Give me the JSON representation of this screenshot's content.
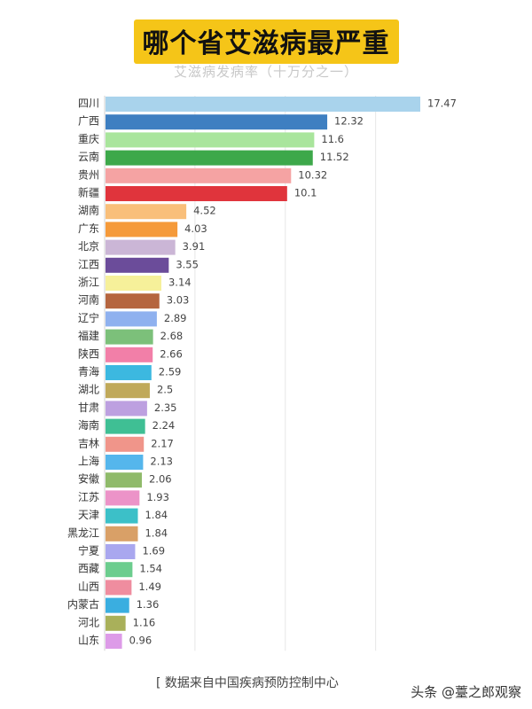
{
  "chart_data": {
    "type": "bar",
    "orientation": "horizontal",
    "title": "哪个省艾滋病最严重",
    "subtitle": "艾滋病发病率（十万分之一）",
    "xlabel": "",
    "ylabel": "",
    "xlim": [
      0,
      18
    ],
    "grid": true,
    "legend": "none",
    "categories": [
      "四川",
      "广西",
      "重庆",
      "云南",
      "贵州",
      "新疆",
      "湖南",
      "广东",
      "北京",
      "江西",
      "浙江",
      "河南",
      "辽宁",
      "福建",
      "陕西",
      "青海",
      "湖北",
      "甘肃",
      "海南",
      "吉林",
      "上海",
      "安徽",
      "江苏",
      "天津",
      "黑龙江",
      "宁夏",
      "西藏",
      "山西",
      "内蒙古",
      "河北",
      "山东"
    ],
    "values": [
      17.47,
      12.32,
      11.6,
      11.52,
      10.32,
      10.1,
      4.52,
      4.03,
      3.91,
      3.55,
      3.14,
      3.03,
      2.89,
      2.68,
      2.66,
      2.59,
      2.5,
      2.35,
      2.24,
      2.17,
      2.13,
      2.06,
      1.93,
      1.84,
      1.84,
      1.69,
      1.54,
      1.49,
      1.36,
      1.16,
      0.96
    ],
    "value_labels": [
      "17.47",
      "12.32",
      "11.6",
      "11.52",
      "10.32",
      "10.1",
      "4.52",
      "4.03",
      "3.91",
      "3.55",
      "3.14",
      "3.03",
      "2.89",
      "2.68",
      "2.66",
      "2.59",
      "2.5",
      "2.35",
      "2.24",
      "2.17",
      "2.13",
      "2.06",
      "1.93",
      "1.84",
      "1.84",
      "1.69",
      "1.54",
      "1.49",
      "1.36",
      "1.16",
      "0.96"
    ],
    "colors": [
      "#a9d3ec",
      "#3e7fc1",
      "#a9e59c",
      "#3da84a",
      "#f5a3a3",
      "#e0343c",
      "#f9bf7a",
      "#f59a3a",
      "#cbb6d6",
      "#6b4c9a",
      "#f6f09a",
      "#b5653f",
      "#8fb1ef",
      "#7cc07a",
      "#f27fa8",
      "#3cb8e0",
      "#c0a95a",
      "#bda0e0",
      "#3fbf94",
      "#f0958a",
      "#55b6ec",
      "#8fba6a",
      "#ec93c8",
      "#3cc0c8",
      "#d9a067",
      "#a9a7ef",
      "#6ccd8e",
      "#ef8d9f",
      "#3aaee0",
      "#a9b05a",
      "#dd9be8"
    ]
  },
  "footer": {
    "source": "[ 数据来自中国疾病预防控制中心",
    "watermark": "头条 @薹之郎观察"
  }
}
